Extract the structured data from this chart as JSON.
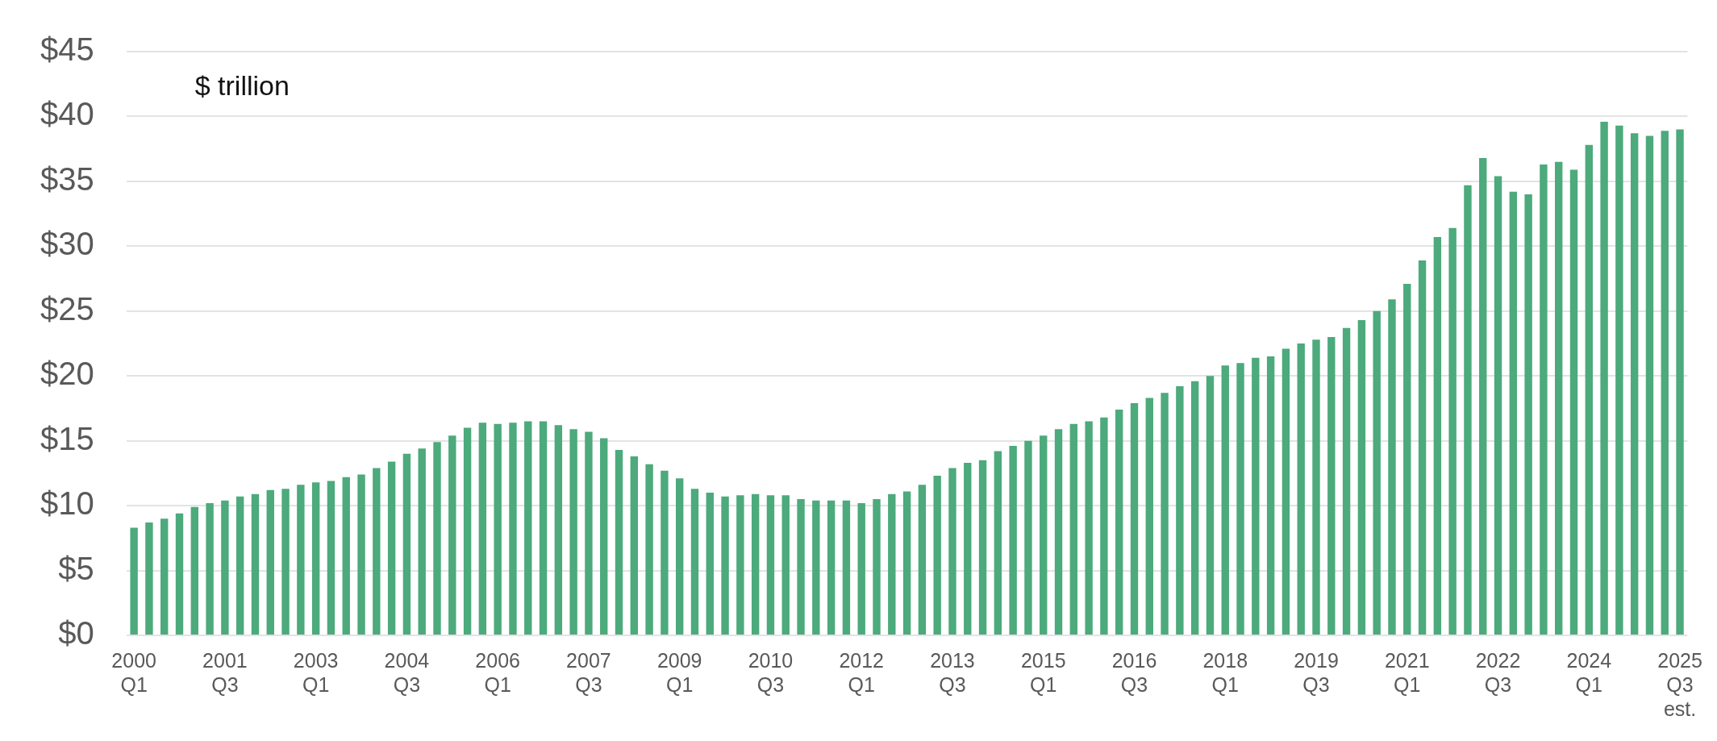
{
  "chart_data": {
    "type": "bar",
    "annotations": [
      "$ trillion"
    ],
    "categories": [
      "2000\nQ1",
      null,
      null,
      null,
      null,
      null,
      "2001\nQ3",
      null,
      null,
      null,
      null,
      null,
      "2003\nQ1",
      null,
      null,
      null,
      null,
      null,
      "2004\nQ3",
      null,
      null,
      null,
      null,
      null,
      "2006\nQ1",
      null,
      null,
      null,
      null,
      null,
      "2007\nQ3",
      null,
      null,
      null,
      null,
      null,
      "2009\nQ1",
      null,
      null,
      null,
      null,
      null,
      "2010\nQ3",
      null,
      null,
      null,
      null,
      null,
      "2012\nQ1",
      null,
      null,
      null,
      null,
      null,
      "2013\nQ3",
      null,
      null,
      null,
      null,
      null,
      "2015\nQ1",
      null,
      null,
      null,
      null,
      null,
      "2016\nQ3",
      null,
      null,
      null,
      null,
      null,
      "2018\nQ1",
      null,
      null,
      null,
      null,
      null,
      "2019\nQ3",
      null,
      null,
      null,
      null,
      null,
      "2021\nQ1",
      null,
      null,
      null,
      null,
      null,
      "2022\nQ3",
      null,
      null,
      null,
      null,
      null,
      "2024\nQ1",
      null,
      null,
      null,
      null,
      null,
      "2025\nQ3\nest."
    ],
    "values": [
      8.3,
      8.7,
      9.0,
      9.4,
      9.9,
      10.2,
      10.4,
      10.7,
      10.9,
      11.2,
      11.3,
      11.6,
      11.8,
      11.9,
      12.2,
      12.4,
      12.9,
      13.4,
      14.0,
      14.4,
      14.9,
      15.4,
      16.0,
      16.4,
      16.3,
      16.4,
      16.5,
      16.5,
      16.2,
      15.9,
      15.7,
      15.2,
      14.3,
      13.8,
      13.2,
      12.7,
      12.1,
      11.3,
      11.0,
      10.7,
      10.8,
      10.9,
      10.8,
      10.8,
      10.5,
      10.4,
      10.4,
      10.4,
      10.2,
      10.5,
      10.9,
      11.1,
      11.6,
      12.3,
      12.9,
      13.3,
      13.5,
      14.2,
      14.6,
      15.0,
      15.4,
      15.9,
      16.3,
      16.5,
      16.8,
      17.4,
      17.9,
      18.3,
      18.7,
      19.2,
      19.6,
      20.0,
      20.8,
      21.0,
      21.4,
      21.5,
      22.1,
      22.5,
      22.8,
      23.0,
      23.7,
      24.3,
      25.0,
      25.9,
      27.1,
      28.9,
      30.7,
      31.4,
      34.7,
      36.8,
      35.4,
      34.2,
      34.0,
      36.3,
      36.5,
      35.9,
      37.8,
      39.6,
      39.3,
      38.7,
      38.5,
      38.9,
      39.0
    ],
    "color": "#4caa7c",
    "ylim": [
      0,
      45
    ],
    "yticks": [
      {
        "value": 0,
        "label": "$0"
      },
      {
        "value": 5,
        "label": "$5"
      },
      {
        "value": 10,
        "label": "$10"
      },
      {
        "value": 15,
        "label": "$15"
      },
      {
        "value": 20,
        "label": "$20"
      },
      {
        "value": 25,
        "label": "$25"
      },
      {
        "value": 30,
        "label": "$30"
      },
      {
        "value": 35,
        "label": "$35"
      },
      {
        "value": 40,
        "label": "$40"
      },
      {
        "value": 45,
        "label": "$45"
      }
    ],
    "grid": "y",
    "legend": false
  }
}
